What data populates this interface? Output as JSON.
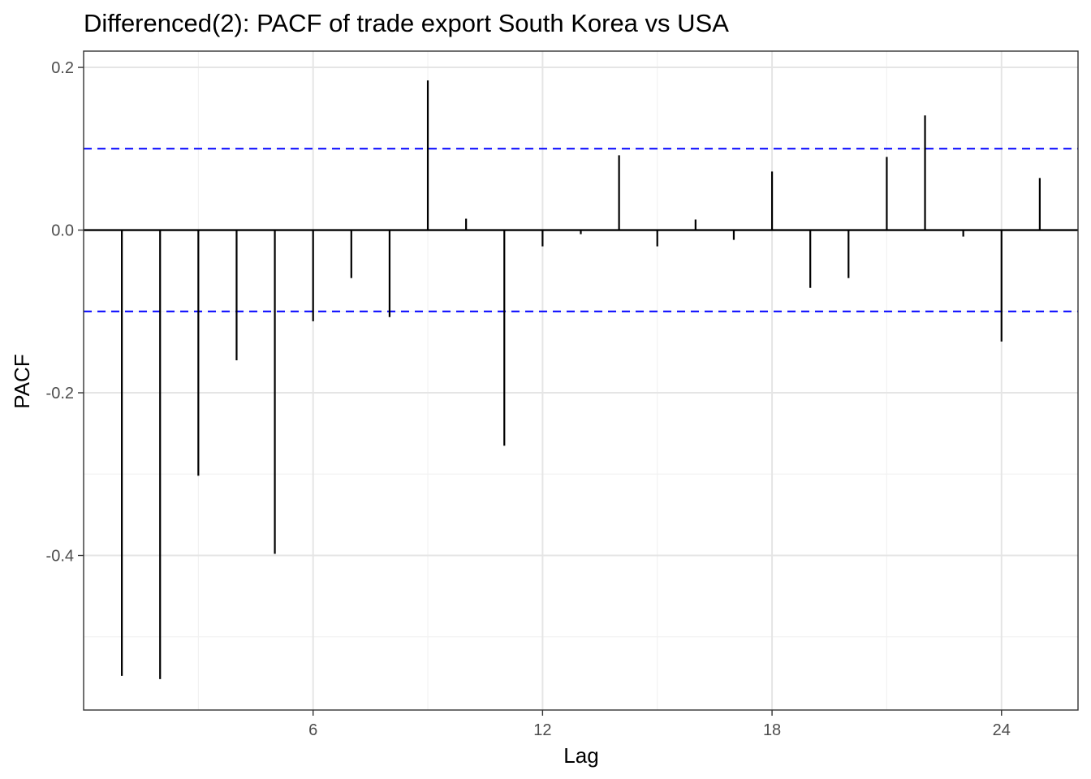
{
  "chart_data": {
    "type": "bar",
    "title": "Differenced(2): PACF of trade export South Korea vs USA",
    "xlabel": "Lag",
    "ylabel": "PACF",
    "xlim": [
      0.0,
      26.0
    ],
    "ylim": [
      -0.59,
      0.22
    ],
    "x_ticks": [
      6,
      12,
      18,
      24
    ],
    "x_tick_labels": [
      "6",
      "12",
      "18",
      "24"
    ],
    "y_ticks": [
      0.2,
      0.0,
      -0.2,
      -0.4
    ],
    "y_tick_labels": [
      "0.2",
      "0.0",
      "-0.2",
      "-0.4"
    ],
    "y_minor_ticks": [
      0.1,
      -0.1,
      -0.3,
      -0.5
    ],
    "x_minor_ticks": [
      3,
      9,
      15,
      21
    ],
    "grid": true,
    "confidence_bound": 0.1,
    "lags": [
      1,
      2,
      3,
      4,
      5,
      6,
      7,
      8,
      9,
      10,
      11,
      12,
      13,
      14,
      15,
      16,
      17,
      18,
      19,
      20,
      21,
      22,
      23,
      24,
      25
    ],
    "values": [
      -0.548,
      -0.552,
      -0.302,
      -0.16,
      -0.398,
      -0.112,
      -0.059,
      -0.107,
      0.184,
      0.014,
      -0.265,
      -0.02,
      -0.005,
      0.092,
      -0.02,
      0.013,
      -0.012,
      0.072,
      -0.071,
      -0.059,
      0.09,
      0.141,
      -0.008,
      -0.137,
      0.064
    ],
    "colors": {
      "bar": "#000000",
      "bound": "#0000ff",
      "zero_line": "#000000",
      "grid_major": "#e5e5e5",
      "grid_minor": "#f2f2f2",
      "panel_border": "#333333"
    }
  }
}
